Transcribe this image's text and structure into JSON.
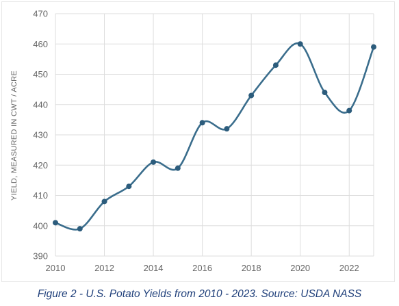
{
  "chart_data": {
    "type": "line",
    "title": "",
    "xlabel": "",
    "ylabel": "YIELD, MEASURED IN CWT / ACRE",
    "x": [
      2010,
      2011,
      2012,
      2013,
      2014,
      2015,
      2016,
      2017,
      2018,
      2019,
      2020,
      2021,
      2022,
      2023
    ],
    "series": [
      {
        "values": [
          401,
          399,
          408,
          413,
          421,
          419,
          434,
          432,
          443,
          453,
          460,
          444,
          438,
          459
        ]
      }
    ],
    "xlim": [
      2010,
      2023
    ],
    "ylim": [
      390,
      470
    ],
    "xticks": [
      "2010",
      "2012",
      "2014",
      "2016",
      "2018",
      "2020",
      "2022"
    ],
    "yticks": [
      "390",
      "400",
      "410",
      "420",
      "430",
      "440",
      "450",
      "460",
      "470"
    ],
    "grid": true,
    "smooth": true,
    "line_color": "#3a6d8c",
    "marker_color": "#2c5c7c",
    "grid_color": "#dddddd"
  },
  "caption": "Figure 2 - U.S. Potato Yields from 2010 - 2023. Source: USDA NASS"
}
